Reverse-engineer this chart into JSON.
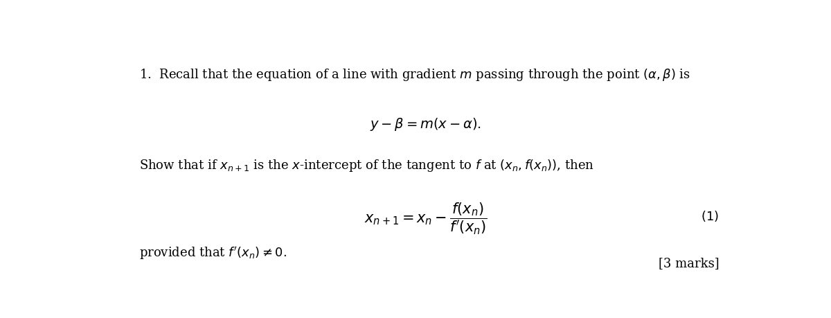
{
  "bg_color": "#ffffff",
  "fig_width": 12.0,
  "fig_height": 4.59,
  "dpi": 100,
  "text_color": "#000000"
}
